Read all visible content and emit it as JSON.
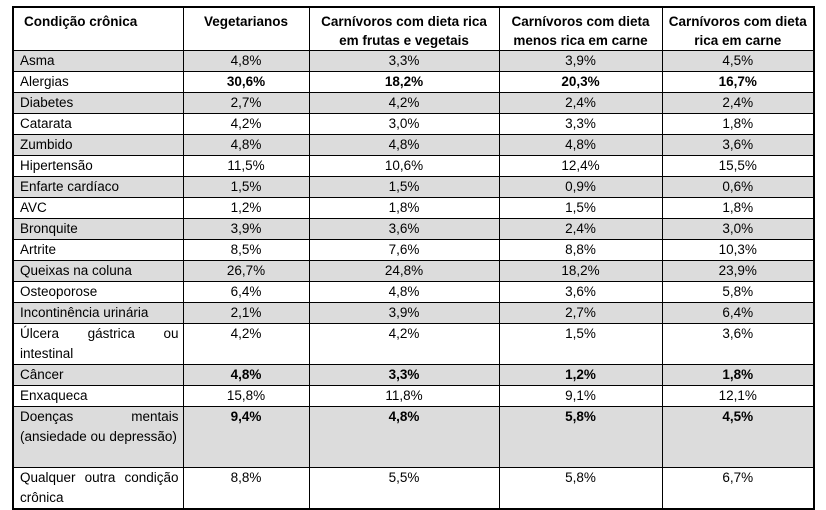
{
  "headers": [
    "Condição crônica",
    "Vegetarianos",
    "Carnívoros com dieta rica em frutas e vegetais",
    "Carnívoros com dieta menos rica em carne",
    "Carnívoros com dieta rica em carne"
  ],
  "rows": [
    {
      "name": "Asma",
      "values": [
        "4,8%",
        "3,3%",
        "3,9%",
        "4,5%"
      ]
    },
    {
      "name": "Alergias",
      "values": [
        "30,6%",
        "18,2%",
        "20,3%",
        "16,7%"
      ]
    },
    {
      "name": "Diabetes",
      "values": [
        "2,7%",
        "4,2%",
        "2,4%",
        "2,4%"
      ]
    },
    {
      "name": "Catarata",
      "values": [
        "4,2%",
        "3,0%",
        "3,3%",
        "1,8%"
      ]
    },
    {
      "name": "Zumbido",
      "values": [
        "4,8%",
        "4,8%",
        "4,8%",
        "3,6%"
      ]
    },
    {
      "name": "Hipertensão",
      "values": [
        "11,5%",
        "10,6%",
        "12,4%",
        "15,5%"
      ]
    },
    {
      "name": "Enfarte cardíaco",
      "values": [
        "1,5%",
        "1,5%",
        "0,9%",
        "0,6%"
      ]
    },
    {
      "name": "AVC",
      "values": [
        "1,2%",
        "1,8%",
        "1,5%",
        "1,8%"
      ]
    },
    {
      "name": "Bronquite",
      "values": [
        "3,9%",
        "3,6%",
        "2,4%",
        "3,0%"
      ]
    },
    {
      "name": "Artrite",
      "values": [
        "8,5%",
        "7,6%",
        "8,8%",
        "10,3%"
      ]
    },
    {
      "name": "Queixas na coluna",
      "values": [
        "26,7%",
        "24,8%",
        "18,2%",
        "23,9%"
      ]
    },
    {
      "name": "Osteoporose",
      "values": [
        "6,4%",
        "4,8%",
        "3,6%",
        "5,8%"
      ]
    },
    {
      "name": "Incontinência urinária",
      "values": [
        "2,1%",
        "3,9%",
        "2,7%",
        "6,4%"
      ]
    },
    {
      "name": "Úlcera gástrica ou intestinal",
      "values": [
        "4,2%",
        "4,2%",
        "1,5%",
        "3,6%"
      ]
    },
    {
      "name": "Câncer",
      "values": [
        "4,8%",
        "3,3%",
        "1,2%",
        "1,8%"
      ]
    },
    {
      "name": "Enxaqueca",
      "values": [
        "15,8%",
        "11,8%",
        "9,1%",
        "12,1%"
      ]
    },
    {
      "name": "Doenças mentais (ansiedade ou depressão)",
      "values": [
        "9,4%",
        "4,8%",
        "5,8%",
        "4,5%"
      ]
    },
    {
      "name": "Qualquer outra condição crônica",
      "values": [
        "8,8%",
        "5,5%",
        "5,8%",
        "6,7%"
      ]
    }
  ]
}
